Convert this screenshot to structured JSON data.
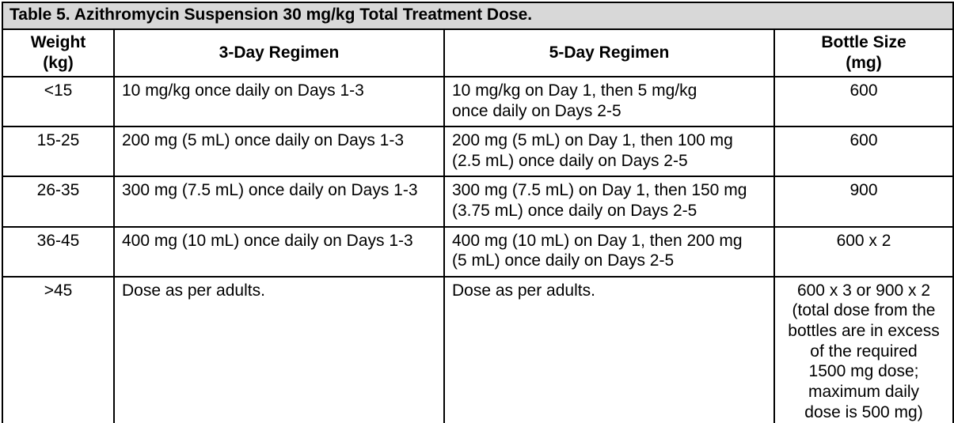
{
  "title": "Table 5. Azithromycin Suspension 30 mg/kg Total Treatment Dose.",
  "colors": {
    "title_bar_background": "#d8d8d8",
    "table_border": "#000000",
    "table_background": "#ffffff",
    "text": "#000000"
  },
  "table": {
    "columns": [
      {
        "label": "Weight\n(kg)"
      },
      {
        "label": "3-Day Regimen"
      },
      {
        "label": "5-Day Regimen"
      },
      {
        "label": "Bottle Size\n(mg)"
      }
    ],
    "rows": [
      {
        "weight": "<15",
        "three_day": "10 mg/kg once daily on Days 1-3",
        "five_day": "10 mg/kg on Day 1, then 5 mg/kg\nonce daily on Days 2-5",
        "bottle": "600"
      },
      {
        "weight": "15-25",
        "three_day": "200 mg (5 mL) once daily on Days 1-3",
        "five_day": "200 mg (5 mL) on Day 1, then 100 mg\n(2.5 mL) once daily on Days 2-5",
        "bottle": "600"
      },
      {
        "weight": "26-35",
        "three_day": "300 mg (7.5 mL) once daily on Days 1-3",
        "five_day": "300 mg (7.5 mL) on Day 1, then 150 mg\n(3.75 mL) once daily on Days 2-5",
        "bottle": "900"
      },
      {
        "weight": "36-45",
        "three_day": "400 mg (10 mL) once daily on Days 1-3",
        "five_day": "400 mg (10 mL) on Day 1, then 200 mg\n(5 mL) once daily on Days 2-5",
        "bottle": "600 x 2"
      },
      {
        "weight": ">45",
        "three_day": "Dose as per adults.",
        "five_day": "Dose as per adults.",
        "bottle": "600 x 3 or 900 x 2\n(total dose from the\nbottles are in excess\nof the required\n1500 mg dose;\nmaximum daily\ndose is 500 mg)"
      }
    ]
  }
}
